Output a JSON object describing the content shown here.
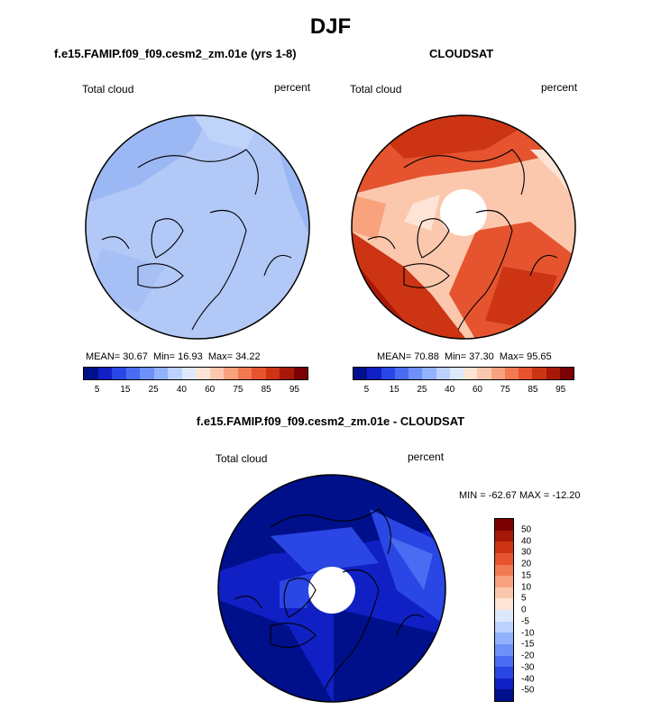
{
  "main_title": "DJF",
  "panels": [
    {
      "title": "f.e15.FAMIP.f09_f09.cesm2_zm.01e (yrs 1-8)",
      "field_label": "Total cloud",
      "units": "percent",
      "stats": {
        "mean_label": "MEAN=",
        "mean": "30.67",
        "min_label": "Min=",
        "min": "16.93",
        "max_label": "Max=",
        "max": "34.22"
      }
    },
    {
      "title": "CLOUDSAT",
      "field_label": "Total cloud",
      "units": "percent",
      "stats": {
        "mean_label": "MEAN=",
        "mean": "70.88",
        "min_label": "Min=",
        "min": "37.30",
        "max_label": "Max=",
        "max": "95.65"
      }
    },
    {
      "title": "f.e15.FAMIP.f09_f09.cesm2_zm.01e - CLOUDSAT",
      "field_label": "Total cloud",
      "units": "percent",
      "minmax": "MIN = -62.67 MAX = -12.20"
    }
  ],
  "abs_colorbar": {
    "colors": [
      "#00108a",
      "#1020c4",
      "#2a46e4",
      "#4a6cf2",
      "#6e90f8",
      "#92b2fc",
      "#bcd2fe",
      "#dde8fd",
      "#fde4d6",
      "#fbc8ae",
      "#f8a27e",
      "#f27a52",
      "#e5542e",
      "#cc3414",
      "#a81808",
      "#7a0004"
    ],
    "ticks": [
      "5",
      "15",
      "25",
      "40",
      "60",
      "75",
      "85",
      "95"
    ]
  },
  "diff_colorbar": {
    "colors": [
      "#7a0004",
      "#a81808",
      "#cc3414",
      "#e5542e",
      "#f27a52",
      "#f8a27e",
      "#fbc8ae",
      "#fde4d6",
      "#dde8fd",
      "#bcd2fe",
      "#92b2fc",
      "#6e90f8",
      "#4a6cf2",
      "#2a46e4",
      "#1020c4",
      "#00108a"
    ],
    "ticks": [
      "50",
      "40",
      "30",
      "20",
      "15",
      "10",
      "5",
      "0",
      "-5",
      "-10",
      "-15",
      "-20",
      "-30",
      "-40",
      "-50"
    ]
  }
}
